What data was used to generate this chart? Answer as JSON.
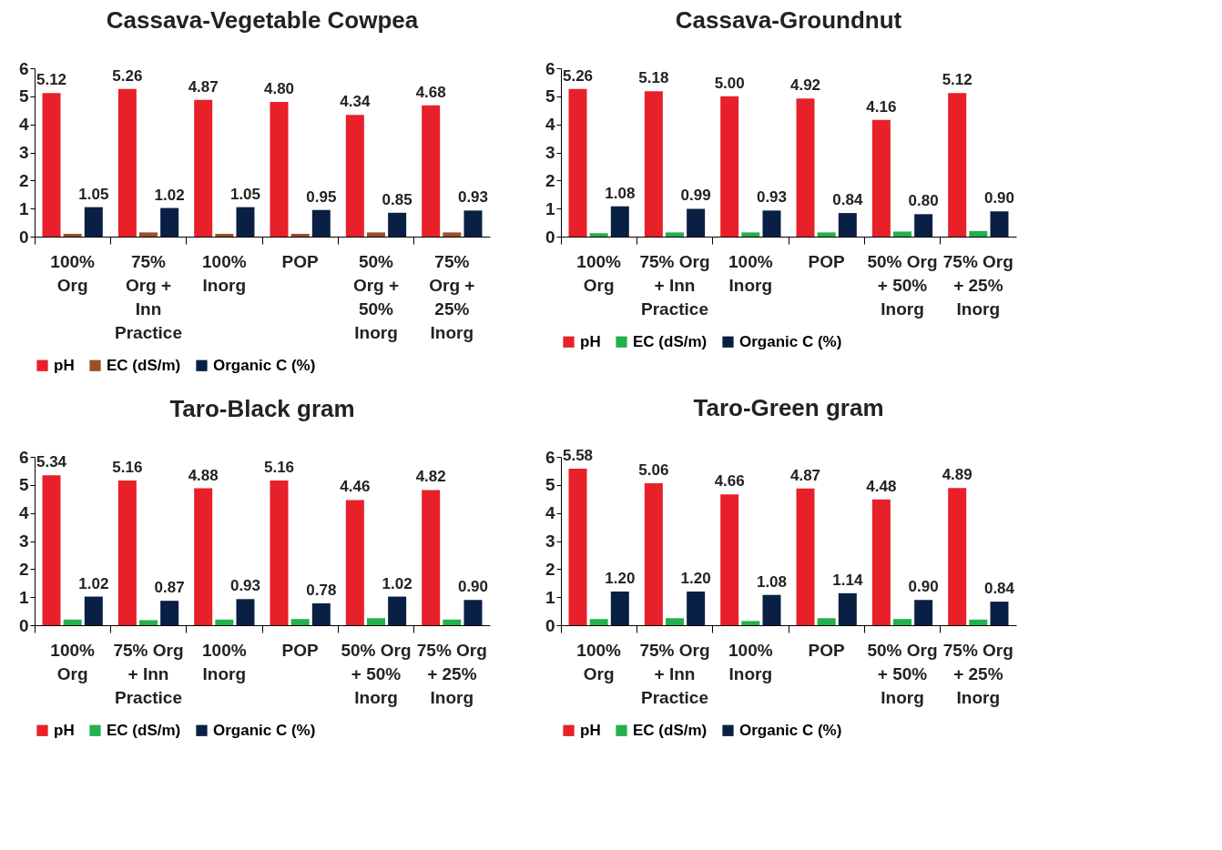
{
  "chart_data": [
    {
      "type": "bar",
      "title": "Cassava-Vegetable Cowpea",
      "categories": [
        "100% Org",
        "75% Org + Inn Practice",
        "100% Inorg",
        "POP",
        "50% Org + 50% Inorg",
        "75% Org + 25% Inorg"
      ],
      "ylim": [
        0,
        6
      ],
      "yticks": [
        0,
        1,
        2,
        3,
        4,
        5,
        6
      ],
      "grid": false,
      "legend": "bottom",
      "series": [
        {
          "name": "pH",
          "color": "#e8202a",
          "values": [
            5.12,
            5.26,
            4.87,
            4.8,
            4.34,
            4.68
          ],
          "value_labels": [
            "5.12",
            "5.26",
            "4.87",
            "4.80",
            "4.34",
            "4.68"
          ]
        },
        {
          "name": "EC (dS/m)",
          "color": "#9c4f2a",
          "values": [
            0.1,
            0.15,
            0.1,
            0.1,
            0.15,
            0.15
          ]
        },
        {
          "name": "Organic C (%)",
          "color": "#0a1f44",
          "values": [
            1.05,
            1.02,
            1.05,
            0.95,
            0.85,
            0.93
          ],
          "value_labels": [
            "1.05",
            "1.02",
            "1.05",
            "0.95",
            "0.85",
            "0.93"
          ]
        }
      ]
    },
    {
      "type": "bar",
      "title": "Cassava-Groundnut",
      "categories": [
        "100% Org",
        "75% Org + Inn Practice",
        "100% Inorg",
        "POP",
        "50% Org + 50% Inorg",
        "75% Org + 25% Inorg"
      ],
      "ylim": [
        0,
        6
      ],
      "yticks": [
        0,
        1,
        2,
        3,
        4,
        5,
        6
      ],
      "grid": false,
      "legend": "bottom",
      "series": [
        {
          "name": "pH",
          "color": "#e8202a",
          "values": [
            5.26,
            5.18,
            5.0,
            4.92,
            4.16,
            5.12
          ],
          "value_labels": [
            "5.26",
            "5.18",
            "5.00",
            "4.92",
            "4.16",
            "5.12"
          ]
        },
        {
          "name": "EC (dS/m)",
          "color": "#22b14c",
          "values": [
            0.12,
            0.15,
            0.15,
            0.15,
            0.18,
            0.2
          ]
        },
        {
          "name": "Organic C (%)",
          "color": "#0a1f44",
          "values": [
            1.08,
            0.99,
            0.93,
            0.84,
            0.8,
            0.9
          ],
          "value_labels": [
            "1.08",
            "0.99",
            "0.93",
            "0.84",
            "0.80",
            "0.90"
          ]
        }
      ]
    },
    {
      "type": "bar",
      "title": "Taro-Black gram",
      "categories": [
        "100% Org",
        "75% Org + Inn Practice",
        "100% Inorg",
        "POP",
        "50% Org + 50% Inorg",
        "75% Org + 25% Inorg"
      ],
      "ylim": [
        0,
        6
      ],
      "yticks": [
        0,
        1,
        2,
        3,
        4,
        5,
        6
      ],
      "grid": false,
      "legend": "bottom",
      "series": [
        {
          "name": "pH",
          "color": "#e8202a",
          "values": [
            5.34,
            5.16,
            4.88,
            5.16,
            4.46,
            4.82
          ],
          "value_labels": [
            "5.34",
            "5.16",
            "4.88",
            "5.16",
            "4.46",
            "4.82"
          ]
        },
        {
          "name": "EC (dS/m)",
          "color": "#22b14c",
          "values": [
            0.2,
            0.18,
            0.2,
            0.22,
            0.25,
            0.2
          ]
        },
        {
          "name": "Organic C (%)",
          "color": "#0a1f44",
          "values": [
            1.02,
            0.87,
            0.93,
            0.78,
            1.02,
            0.9
          ],
          "value_labels": [
            "1.02",
            "0.87",
            "0.93",
            "0.78",
            "1.02",
            "0.90"
          ]
        }
      ]
    },
    {
      "type": "bar",
      "title": "Taro-Green gram",
      "categories": [
        "100% Org",
        "75% Org + Inn Practice",
        "100% Inorg",
        "POP",
        "50% Org + 50% Inorg",
        "75% Org + 25% Inorg"
      ],
      "ylim": [
        0,
        6
      ],
      "yticks": [
        0,
        1,
        2,
        3,
        4,
        5,
        6
      ],
      "grid": false,
      "legend": "bottom",
      "series": [
        {
          "name": "pH",
          "color": "#e8202a",
          "values": [
            5.58,
            5.06,
            4.66,
            4.87,
            4.48,
            4.89
          ],
          "value_labels": [
            "5.58",
            "5.06",
            "4.66",
            "4.87",
            "4.48",
            "4.89"
          ]
        },
        {
          "name": "EC (dS/m)",
          "color": "#22b14c",
          "values": [
            0.22,
            0.25,
            0.15,
            0.25,
            0.22,
            0.2
          ]
        },
        {
          "name": "Organic C (%)",
          "color": "#0a1f44",
          "values": [
            1.2,
            1.2,
            1.08,
            1.14,
            0.9,
            0.84
          ],
          "value_labels": [
            "1.20",
            "1.20",
            "1.08",
            "1.14",
            "0.90",
            "0.84"
          ]
        }
      ]
    }
  ]
}
